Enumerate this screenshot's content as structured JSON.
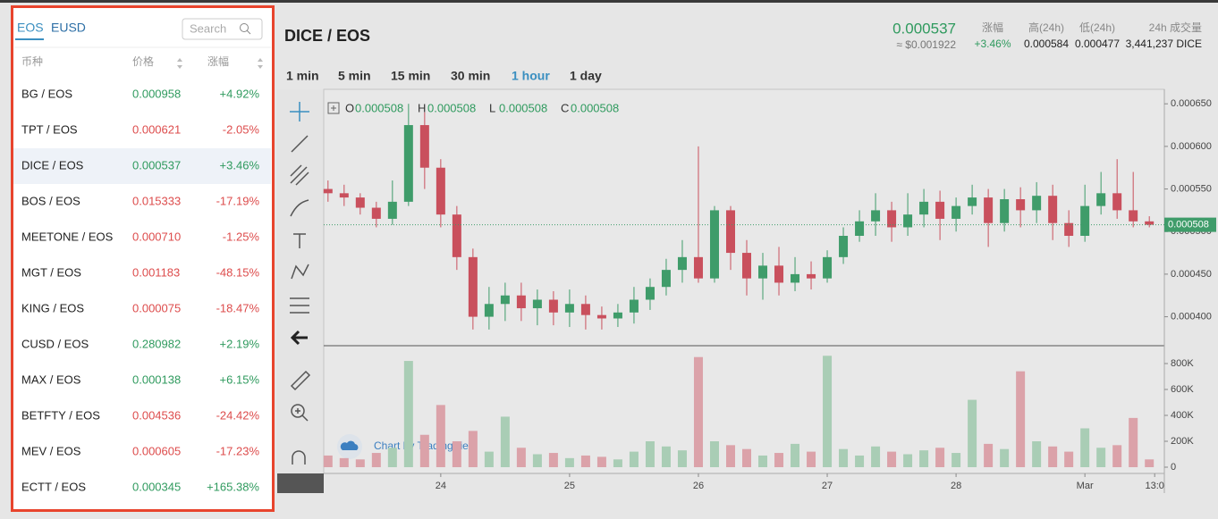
{
  "panel": {
    "tabs": [
      "EOS",
      "EUSD"
    ],
    "active_tab": 0,
    "search_placeholder": "Search",
    "columns": [
      "币种",
      "价格",
      "涨幅"
    ],
    "selected_row": 2,
    "rows": [
      [
        "BG / EOS",
        "0.000958",
        "+4.92%"
      ],
      [
        "TPT / EOS",
        "0.000621",
        "-2.05%"
      ],
      [
        "DICE / EOS",
        "0.000537",
        "+3.46%"
      ],
      [
        "BOS / EOS",
        "0.015333",
        "-17.19%"
      ],
      [
        "MEETONE / EOS",
        "0.000710",
        "-1.25%"
      ],
      [
        "MGT / EOS",
        "0.001183",
        "-48.15%"
      ],
      [
        "KING / EOS",
        "0.000075",
        "-18.47%"
      ],
      [
        "CUSD / EOS",
        "0.280982",
        "+2.19%"
      ],
      [
        "MAX / EOS",
        "0.000138",
        "+6.15%"
      ],
      [
        "BETFTY / EOS",
        "0.004536",
        "-24.42%"
      ],
      [
        "MEV / EOS",
        "0.000605",
        "-17.23%"
      ],
      [
        "ECTT / EOS",
        "0.000345",
        "+165.38%"
      ]
    ]
  },
  "header": {
    "pair": "DICE / EOS",
    "price": "0.000537",
    "usd_price": "≈ $0.001922",
    "stats": [
      {
        "label": "涨幅",
        "value": "+3.46%"
      },
      {
        "label": "高(24h)",
        "value": "0.000584"
      },
      {
        "label": "低(24h)",
        "value": "0.000477"
      },
      {
        "label": "24h 成交量",
        "value": "3,441,237 DICE"
      }
    ]
  },
  "timeframes": [
    "1 min",
    "5 min",
    "15 min",
    "30 min",
    "1 hour",
    "1 day"
  ],
  "active_timeframe": 4,
  "ohlc_legend": [
    {
      "key": "O",
      "value": "0.000508"
    },
    {
      "key": "H",
      "value": "0.000508"
    },
    {
      "key": "L",
      "value": "0.000508"
    },
    {
      "key": "C",
      "value": "0.000508"
    }
  ],
  "watermark": "Chart by TradingView",
  "chart_data": {
    "type": "candlestick",
    "up_color": "#3f9c6a",
    "down_color": "#c9505d",
    "volume_up_color": "#a9cdb5",
    "volume_down_color": "#dba2a9",
    "x": [
      3,
      6,
      9,
      12,
      15,
      18,
      21,
      24,
      27,
      30,
      33,
      36,
      39,
      42,
      45,
      48,
      51,
      54,
      57,
      60,
      63,
      66,
      69,
      72,
      75,
      78,
      81,
      84,
      87,
      90,
      93,
      96,
      99,
      102,
      105,
      108,
      111,
      114,
      117,
      120,
      123,
      126,
      129,
      132,
      135,
      138,
      141,
      144,
      147,
      150,
      153,
      156
    ],
    "open": [
      0.00055,
      0.000545,
      0.00054,
      0.000528,
      0.000515,
      0.000535,
      0.000625,
      0.000575,
      0.00052,
      0.00047,
      0.0004,
      0.000415,
      0.000425,
      0.00041,
      0.00042,
      0.000405,
      0.000415,
      0.000402,
      0.000398,
      0.000405,
      0.00042,
      0.000435,
      0.000455,
      0.00047,
      0.000445,
      0.000525,
      0.000475,
      0.000445,
      0.00046,
      0.00044,
      0.00045,
      0.000445,
      0.00047,
      0.000495,
      0.000512,
      0.000525,
      0.000505,
      0.00052,
      0.000535,
      0.000515,
      0.00053,
      0.00054,
      0.00051,
      0.000538,
      0.000525,
      0.000542,
      0.00051,
      0.000495,
      0.00053,
      0.000545,
      0.000525,
      0.000512
    ],
    "high": [
      0.00056,
      0.000555,
      0.000545,
      0.000535,
      0.00056,
      0.00065,
      0.00064,
      0.000585,
      0.00053,
      0.00048,
      0.000435,
      0.00044,
      0.00044,
      0.000432,
      0.00043,
      0.000432,
      0.000425,
      0.000412,
      0.000415,
      0.000435,
      0.000445,
      0.000468,
      0.00049,
      0.0006,
      0.00053,
      0.00053,
      0.00049,
      0.000475,
      0.000482,
      0.00047,
      0.000465,
      0.000478,
      0.000505,
      0.000525,
      0.000545,
      0.000535,
      0.000545,
      0.00055,
      0.000548,
      0.00054,
      0.000555,
      0.00055,
      0.00055,
      0.000552,
      0.000558,
      0.000555,
      0.000525,
      0.000555,
      0.00057,
      0.000585,
      0.00057,
      0.000518
    ],
    "low": [
      0.000535,
      0.00053,
      0.00052,
      0.000505,
      0.000508,
      0.00053,
      0.00055,
      0.000505,
      0.000455,
      0.000385,
      0.000385,
      0.000395,
      0.000395,
      0.00039,
      0.00039,
      0.000388,
      0.000385,
      0.000385,
      0.000388,
      0.000392,
      0.000408,
      0.000425,
      0.00044,
      0.00044,
      0.00044,
      0.000455,
      0.000425,
      0.00042,
      0.000425,
      0.00043,
      0.000432,
      0.00044,
      0.000462,
      0.000488,
      0.000495,
      0.000488,
      0.000495,
      0.000505,
      0.00049,
      0.0005,
      0.00052,
      0.000482,
      0.0005,
      0.000505,
      0.00051,
      0.00049,
      0.000482,
      0.000488,
      0.00052,
      0.000515,
      0.000505,
      0.000505
    ],
    "close": [
      0.000545,
      0.00054,
      0.000528,
      0.000515,
      0.000535,
      0.000625,
      0.000575,
      0.00052,
      0.00047,
      0.0004,
      0.000415,
      0.000425,
      0.00041,
      0.00042,
      0.000405,
      0.000415,
      0.000402,
      0.000398,
      0.000405,
      0.00042,
      0.000435,
      0.000455,
      0.00047,
      0.000445,
      0.000525,
      0.000475,
      0.000445,
      0.00046,
      0.00044,
      0.00045,
      0.000445,
      0.00047,
      0.000495,
      0.000512,
      0.000525,
      0.000505,
      0.00052,
      0.000535,
      0.000515,
      0.00053,
      0.00054,
      0.00051,
      0.000538,
      0.000525,
      0.000542,
      0.00051,
      0.000495,
      0.00053,
      0.000545,
      0.000525,
      0.000512,
      0.000508
    ],
    "volume": [
      90000,
      70000,
      60000,
      110000,
      150000,
      820000,
      250000,
      480000,
      200000,
      280000,
      120000,
      390000,
      150000,
      100000,
      110000,
      70000,
      90000,
      80000,
      60000,
      120000,
      200000,
      160000,
      130000,
      850000,
      200000,
      170000,
      140000,
      90000,
      110000,
      180000,
      120000,
      860000,
      140000,
      90000,
      160000,
      120000,
      100000,
      130000,
      150000,
      110000,
      520000,
      180000,
      140000,
      740000,
      200000,
      160000,
      120000,
      300000,
      150000,
      170000,
      380000,
      60000
    ],
    "xlim": [
      2.2,
      158.8
    ],
    "xticks": [
      {
        "value": 24,
        "label": "24"
      },
      {
        "value": 48,
        "label": "25"
      },
      {
        "value": 72,
        "label": "26"
      },
      {
        "value": 96,
        "label": "27"
      },
      {
        "value": 120,
        "label": "28"
      },
      {
        "value": 144,
        "label": "Mar"
      },
      {
        "value": 157,
        "label": "13:0"
      }
    ],
    "ylim": [
      0.000366,
      0.000667
    ],
    "yticks": [
      {
        "value": 0.0004,
        "label": "0.000400"
      },
      {
        "value": 0.00045,
        "label": "0.000450"
      },
      {
        "value": 0.0005,
        "label": "0.000500"
      },
      {
        "value": 0.00055,
        "label": "0.000550"
      },
      {
        "value": 0.0006,
        "label": "0.000600"
      },
      {
        "value": 0.00065,
        "label": "0.000650"
      }
    ],
    "volume_ylim": [
      0,
      917000
    ],
    "volume_ticks": [
      0,
      {
        "value": 200000,
        "label": "200K"
      },
      {
        "value": 400000,
        "label": "400K"
      },
      {
        "value": 600000,
        "label": "600K"
      },
      {
        "value": 800000,
        "label": "800K"
      }
    ],
    "last_price": {
      "value": 0.000508,
      "label": "0.000508"
    }
  }
}
